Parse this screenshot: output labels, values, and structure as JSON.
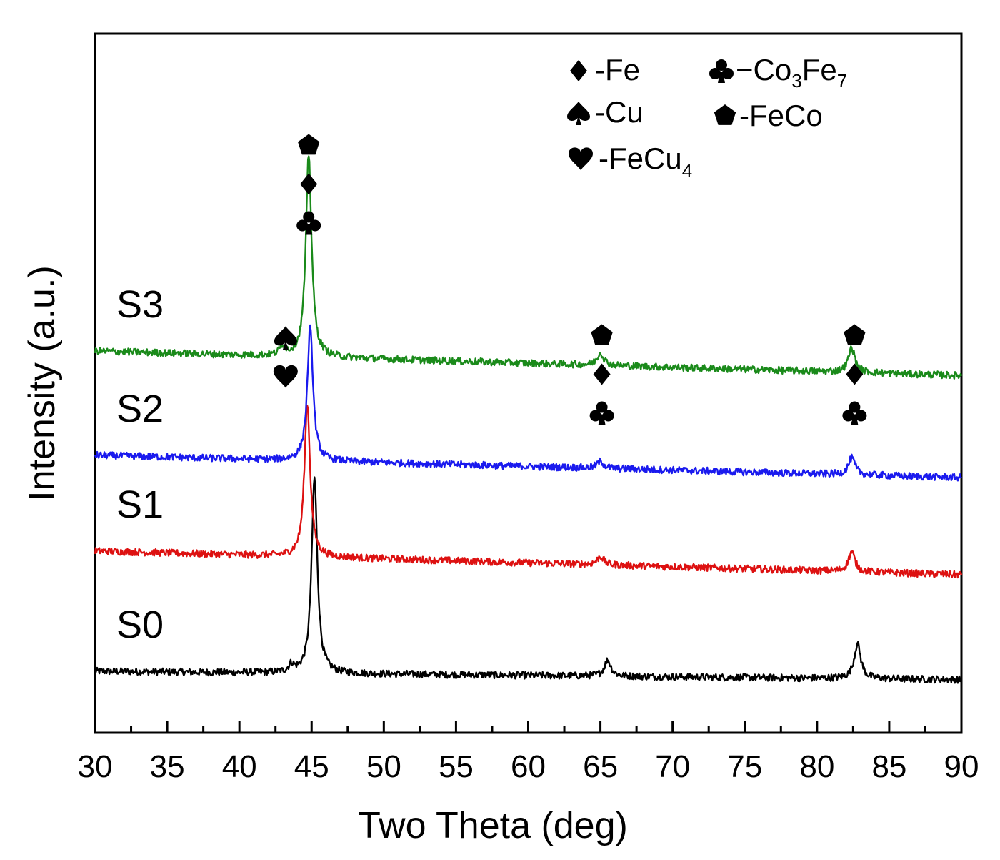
{
  "chart_data": {
    "type": "line",
    "title": "",
    "xlabel": "Two Theta (deg)",
    "ylabel": "Intensity (a.u.)",
    "xlim": [
      30,
      90
    ],
    "x_ticks": [
      "30",
      "35",
      "40",
      "45",
      "50",
      "55",
      "60",
      "65",
      "70",
      "75",
      "80",
      "85",
      "90"
    ],
    "y_ticks": [],
    "grid": false,
    "series": [
      {
        "name": "S0",
        "color": "#000000",
        "baseline": [
          {
            "x": 30,
            "y": 8.8
          },
          {
            "x": 90,
            "y": 7.6
          }
        ],
        "peaks": [
          {
            "x": 43.6,
            "height": 1.0,
            "width": 0.28
          },
          {
            "x": 45.2,
            "height": 28.0,
            "width": 0.3
          },
          {
            "x": 65.5,
            "height": 2.3,
            "width": 0.35
          },
          {
            "x": 82.8,
            "height": 5.0,
            "width": 0.35
          }
        ]
      },
      {
        "name": "S1",
        "color": "#dd1111",
        "baseline": [
          {
            "x": 30,
            "y": 26.0
          },
          {
            "x": 90,
            "y": 22.6
          }
        ],
        "peaks": [
          {
            "x": 44.7,
            "height": 22.0,
            "width": 0.3
          },
          {
            "x": 65.0,
            "height": 1.2,
            "width": 0.35
          },
          {
            "x": 82.4,
            "height": 2.8,
            "width": 0.35
          }
        ]
      },
      {
        "name": "S2",
        "color": "#1a1aee",
        "baseline": [
          {
            "x": 30,
            "y": 39.7
          },
          {
            "x": 90,
            "y": 36.5
          }
        ],
        "peaks": [
          {
            "x": 44.9,
            "height": 19.0,
            "width": 0.3
          },
          {
            "x": 65.0,
            "height": 1.0,
            "width": 0.35
          },
          {
            "x": 82.4,
            "height": 2.4,
            "width": 0.35
          }
        ]
      },
      {
        "name": "S3",
        "color": "#1a8a1a",
        "baseline": [
          {
            "x": 30,
            "y": 54.6
          },
          {
            "x": 90,
            "y": 51.1
          }
        ],
        "peaks": [
          {
            "x": 43.0,
            "height": 1.3,
            "width": 0.3
          },
          {
            "x": 44.8,
            "height": 29.0,
            "width": 0.3
          },
          {
            "x": 65.0,
            "height": 1.8,
            "width": 0.35
          },
          {
            "x": 82.4,
            "height": 3.5,
            "width": 0.35
          }
        ]
      }
    ],
    "peak_markers": [
      {
        "x": 43.2,
        "symbols": [
          "spade",
          "heart"
        ],
        "y": 56.5
      },
      {
        "x": 44.8,
        "symbols": [
          "pentagon",
          "diamond",
          "club"
        ],
        "y": 84.0
      },
      {
        "x": 65.1,
        "symbols": [
          "pentagon",
          "diamond",
          "club"
        ],
        "y": 56.8
      },
      {
        "x": 82.6,
        "symbols": [
          "pentagon",
          "diamond",
          "club"
        ],
        "y": 56.8
      }
    ],
    "legend": {
      "placement": "top-right",
      "entries": [
        {
          "symbol": "diamond",
          "label": "-Fe"
        },
        {
          "symbol": "club",
          "label": "−Co",
          "sub1": "3",
          "mid": "Fe",
          "sub2": "7"
        },
        {
          "symbol": "spade",
          "label": "-Cu"
        },
        {
          "symbol": "pentagon",
          "label": "-FeCo"
        },
        {
          "symbol": "heart",
          "label": "-FeCu",
          "sub1": "4"
        }
      ]
    }
  }
}
